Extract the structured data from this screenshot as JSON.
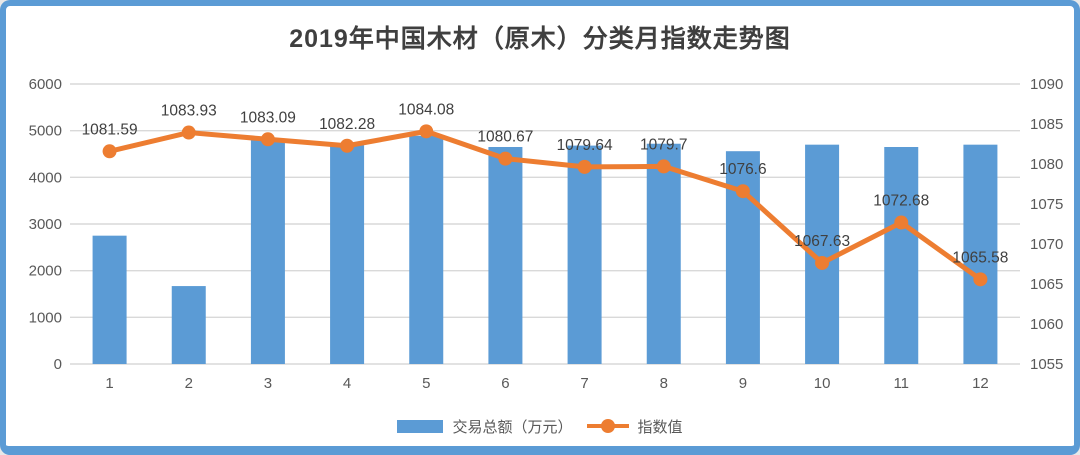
{
  "frame": {
    "border_color": "#5b9bd5",
    "background_color": "#ffffff"
  },
  "chart_data": {
    "type": "bar",
    "subtype": "bar-line-combo",
    "title": "2019年中国木材（原木）分类月指数走势图",
    "categories": [
      "1",
      "2",
      "3",
      "4",
      "5",
      "6",
      "7",
      "8",
      "9",
      "10",
      "11",
      "12"
    ],
    "series": [
      {
        "name": "交易总额（万元）",
        "type": "bar",
        "axis": "left",
        "color": "#5b9bd5",
        "values": [
          2750,
          1670,
          4800,
          4690,
          4890,
          4650,
          4680,
          4720,
          4560,
          4700,
          4650,
          4700
        ]
      },
      {
        "name": "指数值",
        "type": "line",
        "axis": "right",
        "color": "#ed7d31",
        "values": [
          1081.59,
          1083.93,
          1083.09,
          1082.28,
          1084.08,
          1080.67,
          1079.64,
          1079.7,
          1076.6,
          1067.63,
          1072.68,
          1065.58
        ],
        "data_labels": [
          "1081.59",
          "1083.93",
          "1083.09",
          "1082.28",
          "1084.08",
          "1080.67",
          "1079.64",
          "1079.7",
          "1076.6",
          "1067.63",
          "1072.68",
          "1065.58"
        ]
      }
    ],
    "left_axis": {
      "min": 0,
      "max": 6000,
      "step": 1000,
      "ticks": [
        "0",
        "1000",
        "2000",
        "3000",
        "4000",
        "5000",
        "6000"
      ]
    },
    "right_axis": {
      "min": 1055,
      "max": 1090,
      "step": 5,
      "ticks": [
        "1055",
        "1060",
        "1065",
        "1070",
        "1075",
        "1080",
        "1085",
        "1090"
      ]
    },
    "grid": "horizontal",
    "gridline_color": "#d9d9d9",
    "axis_text_color": "#595959",
    "data_label_color": "#404040",
    "legend_position": "bottom"
  }
}
